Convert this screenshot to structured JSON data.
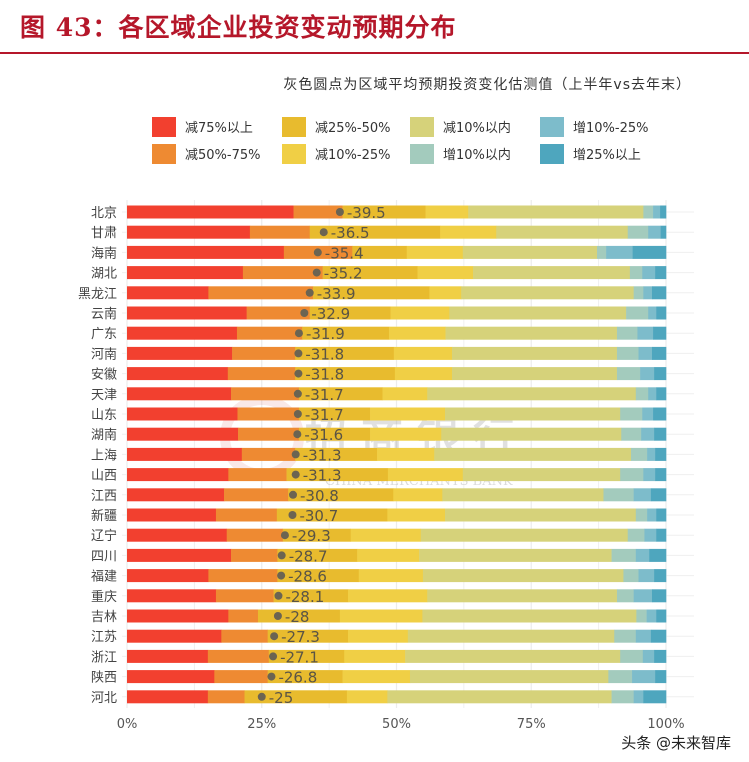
{
  "title": "图 43：各区域企业投资变动预期分布",
  "footer": "头条 @未来智库",
  "watermark": {
    "cn": "招商银行",
    "en": "CHINA MERCHANTS BANK"
  },
  "chart_data": {
    "type": "bar",
    "orientation": "horizontal",
    "stacked": true,
    "subtitle": "灰色圆点为区域平均预期投资变化估测值（上半年vs去年末）",
    "legend_position": "top",
    "grid": true,
    "xlim": [
      0,
      100
    ],
    "xticks": [
      "0%",
      "25%",
      "50%",
      "75%",
      "100%"
    ],
    "categories": [
      "北京",
      "甘肃",
      "海南",
      "湖北",
      "黑龙江",
      "云南",
      "广东",
      "河南",
      "安徽",
      "天津",
      "山东",
      "湖南",
      "上海",
      "山西",
      "江西",
      "新疆",
      "辽宁",
      "四川",
      "福建",
      "重庆",
      "吉林",
      "江苏",
      "浙江",
      "陕西",
      "河北"
    ],
    "series": [
      {
        "name": "减75%以上",
        "color": "#f2402f",
        "values": [
          30.9,
          22.8,
          29.1,
          21.5,
          15.1,
          22.2,
          20.4,
          19.5,
          18.7,
          19.3,
          20.5,
          20.6,
          21.3,
          18.8,
          18.0,
          16.5,
          18.5,
          19.3,
          15.1,
          16.5,
          18.8,
          17.5,
          15.0,
          16.2,
          15.0
        ]
      },
      {
        "name": "减50%-75%",
        "color": "#ee8a32",
        "values": [
          9.1,
          11.1,
          12.7,
          14.8,
          19.4,
          11.7,
          12.1,
          11.7,
          12.5,
          12.6,
          11.4,
          11.3,
          9.9,
          10.8,
          11.9,
          11.3,
          10.4,
          8.6,
          12.8,
          10.7,
          5.5,
          8.6,
          11.3,
          9.9,
          6.8
        ]
      },
      {
        "name": "减25%-50%",
        "color": "#e8bb2e",
        "values": [
          15.4,
          24.2,
          10.1,
          17.6,
          21.6,
          15.0,
          16.1,
          18.3,
          18.5,
          15.5,
          13.2,
          13.2,
          15.2,
          18.8,
          19.5,
          20.5,
          12.6,
          14.8,
          15.1,
          13.8,
          15.2,
          14.9,
          14.0,
          13.9,
          19.0
        ]
      },
      {
        "name": "减10%-25%",
        "color": "#f0cf45",
        "values": [
          7.9,
          10.4,
          10.4,
          10.3,
          5.9,
          10.9,
          10.5,
          10.8,
          10.6,
          8.3,
          13.9,
          13.2,
          10.6,
          13.9,
          9.1,
          10.7,
          13.0,
          11.5,
          11.9,
          14.7,
          15.3,
          11.1,
          11.3,
          12.5,
          7.5
        ]
      },
      {
        "name": "减10%以内",
        "color": "#d6d27a",
        "values": [
          32.5,
          24.4,
          24.9,
          29.1,
          32.0,
          32.8,
          31.8,
          30.6,
          30.6,
          38.7,
          32.5,
          33.4,
          36.5,
          29.2,
          29.9,
          35.4,
          38.4,
          35.7,
          37.2,
          35.2,
          39.7,
          38.3,
          39.9,
          36.8,
          41.6
        ]
      },
      {
        "name": "增10%以内",
        "color": "#a3cbbd",
        "values": [
          1.8,
          3.8,
          1.7,
          2.3,
          1.8,
          4.1,
          3.8,
          4.0,
          4.3,
          2.3,
          4.1,
          3.7,
          3.0,
          4.3,
          5.6,
          2.1,
          3.1,
          4.5,
          2.8,
          3.1,
          1.9,
          4.0,
          4.2,
          4.4,
          4.1
        ]
      },
      {
        "name": "增10%-25%",
        "color": "#7dbccb",
        "values": [
          1.3,
          2.3,
          4.9,
          2.4,
          1.6,
          1.5,
          2.9,
          2.5,
          2.6,
          1.5,
          2.0,
          2.4,
          1.5,
          2.2,
          3.2,
          1.7,
          2.2,
          2.5,
          2.9,
          3.4,
          1.8,
          2.8,
          2.1,
          4.3,
          1.8
        ]
      },
      {
        "name": "增25%以上",
        "color": "#4ea6be",
        "values": [
          1.1,
          1.0,
          6.2,
          2.0,
          2.6,
          1.8,
          2.4,
          2.6,
          2.2,
          1.8,
          2.4,
          2.2,
          2.0,
          2.0,
          2.8,
          1.8,
          1.8,
          3.1,
          2.2,
          2.6,
          1.8,
          2.8,
          2.2,
          2.0,
          4.2
        ]
      }
    ],
    "average": {
      "color": "#6b6452",
      "values": [
        -39.5,
        -36.5,
        -35.4,
        -35.2,
        -33.9,
        -32.9,
        -31.9,
        -31.8,
        -31.8,
        -31.7,
        -31.7,
        -31.6,
        -31.3,
        -31.3,
        -30.8,
        -30.7,
        -29.3,
        -28.7,
        -28.6,
        -28.1,
        -28,
        -27.3,
        -27.1,
        -26.8,
        -25
      ]
    }
  }
}
